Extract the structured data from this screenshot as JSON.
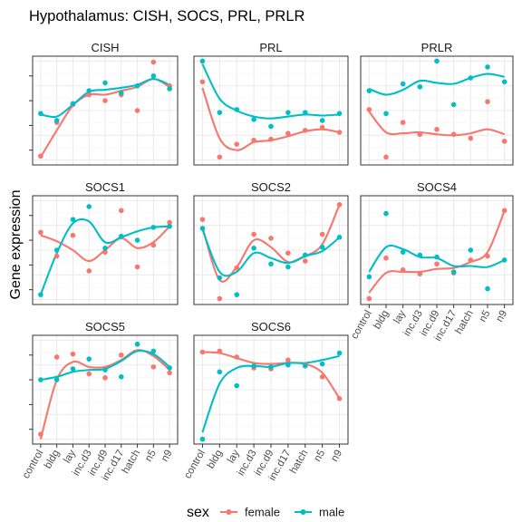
{
  "title": "Hypothalamus: CISH, SOCS, PRL, PRLR",
  "ylabel": "Gene expression",
  "legend": {
    "title": "sex",
    "entries": [
      {
        "name": "female",
        "color": "#F8766D"
      },
      {
        "name": "male",
        "color": "#00BFC4"
      }
    ]
  },
  "chart_data": {
    "type": "scatter",
    "smoothing": "loess curve per sex",
    "categories": [
      "control",
      "bldg",
      "lay",
      "inc.d3",
      "inc.d9",
      "inc.d17",
      "hatch",
      "n5",
      "n9"
    ],
    "ylim": [
      0,
      1
    ],
    "grid": true,
    "legend_position": "bottom",
    "panels": [
      {
        "title": "CISH",
        "female": [
          0.04,
          0.38,
          0.56,
          0.66,
          0.6,
          0.66,
          0.5,
          0.99,
          0.75
        ],
        "male": [
          0.47,
          0.4,
          0.57,
          0.7,
          0.78,
          0.68,
          0.75,
          0.85,
          0.72
        ],
        "female_fit": [
          0.03,
          0.3,
          0.55,
          0.66,
          0.66,
          0.7,
          0.74,
          0.82,
          0.74
        ],
        "male_fit": [
          0.46,
          0.44,
          0.56,
          0.69,
          0.71,
          0.73,
          0.76,
          0.82,
          0.76
        ]
      },
      {
        "title": "PRL",
        "female": [
          0.79,
          0.03,
          0.16,
          0.2,
          0.21,
          0.27,
          0.3,
          0.33,
          0.28
        ],
        "male": [
          1.0,
          0.48,
          0.51,
          0.41,
          0.34,
          0.48,
          0.48,
          0.4,
          0.47
        ],
        "female_fit": [
          0.73,
          0.22,
          0.1,
          0.18,
          0.2,
          0.24,
          0.29,
          0.31,
          0.28
        ],
        "male_fit": [
          0.97,
          0.62,
          0.5,
          0.44,
          0.42,
          0.44,
          0.46,
          0.45,
          0.46
        ]
      },
      {
        "title": "PRLR",
        "female": [
          0.51,
          0.03,
          0.38,
          0.26,
          0.31,
          0.26,
          0.22,
          0.59,
          0.19
        ],
        "male": [
          0.7,
          0.47,
          0.77,
          0.74,
          1.0,
          0.56,
          0.83,
          0.94,
          0.79
        ],
        "female_fit": [
          0.49,
          0.28,
          0.27,
          0.28,
          0.26,
          0.25,
          0.27,
          0.31,
          0.26
        ],
        "male_fit": [
          0.72,
          0.66,
          0.71,
          0.8,
          0.78,
          0.77,
          0.83,
          0.87,
          0.84
        ]
      },
      {
        "title": "SOCS1",
        "female": [
          0.68,
          0.44,
          0.65,
          0.29,
          0.48,
          0.9,
          0.33,
          0.55,
          0.78
        ],
        "male": [
          0.05,
          0.5,
          0.81,
          0.94,
          0.52,
          0.64,
          0.6,
          0.73,
          0.74
        ],
        "female_fit": [
          0.65,
          0.59,
          0.5,
          0.39,
          0.5,
          0.62,
          0.52,
          0.58,
          0.74
        ],
        "male_fit": [
          0.05,
          0.47,
          0.77,
          0.79,
          0.58,
          0.63,
          0.69,
          0.73,
          0.74
        ]
      },
      {
        "title": "SOCS2",
        "female": [
          0.81,
          0.01,
          0.32,
          0.66,
          0.62,
          0.47,
          0.39,
          0.66,
          0.96
        ],
        "male": [
          0.72,
          0.22,
          0.05,
          0.52,
          0.36,
          0.33,
          0.45,
          0.53,
          0.63
        ],
        "female_fit": [
          0.73,
          0.2,
          0.33,
          0.6,
          0.53,
          0.38,
          0.44,
          0.56,
          0.96
        ],
        "male_fit": [
          0.71,
          0.28,
          0.28,
          0.47,
          0.42,
          0.37,
          0.44,
          0.49,
          0.63
        ]
      },
      {
        "title": "SOCS4",
        "female": [
          0.01,
          0.42,
          0.3,
          0.26,
          0.36,
          0.27,
          0.4,
          0.44,
          0.9
        ],
        "male": [
          0.23,
          0.87,
          0.48,
          0.45,
          0.43,
          0.28,
          0.5,
          0.11,
          0.4
        ],
        "female_fit": [
          0.07,
          0.27,
          0.28,
          0.28,
          0.31,
          0.32,
          0.38,
          0.48,
          0.9
        ],
        "male_fit": [
          0.28,
          0.53,
          0.51,
          0.43,
          0.42,
          0.34,
          0.34,
          0.33,
          0.4
        ]
      },
      {
        "title": "SOCS5",
        "female": [
          0.05,
          0.83,
          0.86,
          0.66,
          0.62,
          0.85,
          0.96,
          0.73,
          0.67
        ],
        "male": [
          0.6,
          0.6,
          0.71,
          0.81,
          0.7,
          0.63,
          0.96,
          0.89,
          0.72
        ],
        "female_fit": [
          0.0,
          0.6,
          0.78,
          0.73,
          0.73,
          0.8,
          0.9,
          0.84,
          0.7
        ],
        "male_fit": [
          0.6,
          0.63,
          0.68,
          0.7,
          0.71,
          0.79,
          0.89,
          0.86,
          0.73
        ]
      },
      {
        "title": "SOCS6",
        "female": [
          0.88,
          0.89,
          0.83,
          0.72,
          0.71,
          0.8,
          0.75,
          0.63,
          0.41
        ],
        "male": [
          0.0,
          0.68,
          0.54,
          0.74,
          0.73,
          0.75,
          0.74,
          0.76,
          0.87
        ],
        "female_fit": [
          0.88,
          0.87,
          0.82,
          0.77,
          0.76,
          0.77,
          0.76,
          0.67,
          0.41
        ],
        "male_fit": [
          0.07,
          0.56,
          0.72,
          0.74,
          0.73,
          0.77,
          0.77,
          0.8,
          0.84
        ]
      }
    ]
  }
}
